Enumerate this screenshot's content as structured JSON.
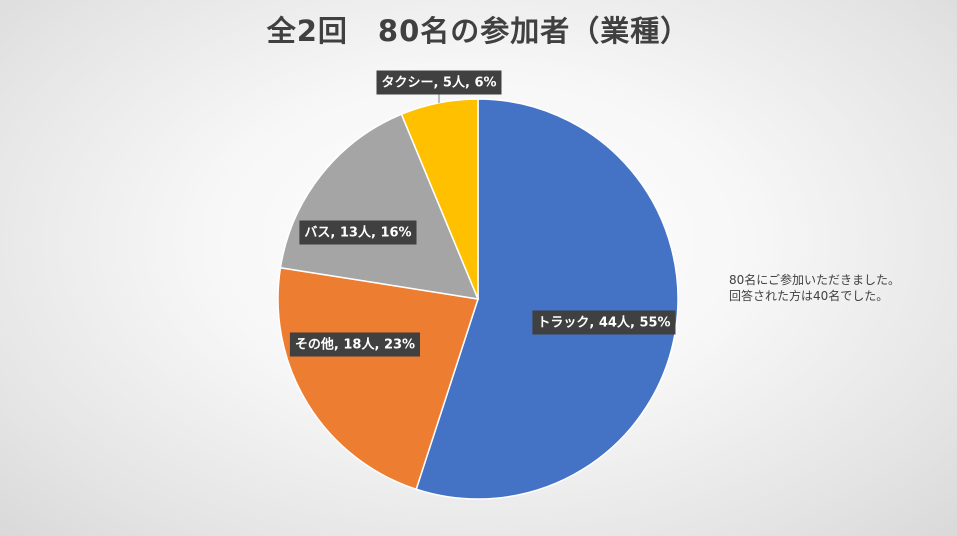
{
  "chart_data": {
    "type": "pie",
    "title": "全2回　80名の参加者（業種）",
    "slices": [
      {
        "name": "トラック",
        "count": 44,
        "unit": "人",
        "percent": 55,
        "label": "トラック, 44人, 55%",
        "color": "#4472C4"
      },
      {
        "name": "その他",
        "count": 18,
        "unit": "人",
        "percent": 23,
        "label": "その他, 18人, 23%",
        "color": "#ED7D31"
      },
      {
        "name": "バス",
        "count": 13,
        "unit": "人",
        "percent": 16,
        "label": "バス, 13人, 16%",
        "color": "#A5A5A5"
      },
      {
        "name": "タクシー",
        "count": 5,
        "unit": "人",
        "percent": 6,
        "label": "タクシー, 5人, 6%",
        "color": "#FFC000"
      }
    ],
    "start": "12 o'clock",
    "direction": "clockwise",
    "legend": "none",
    "data_label_style": "dark boxes"
  },
  "note": {
    "line1": "80名にご参加いただきました。",
    "line2": "回答された方は40名でした。"
  }
}
